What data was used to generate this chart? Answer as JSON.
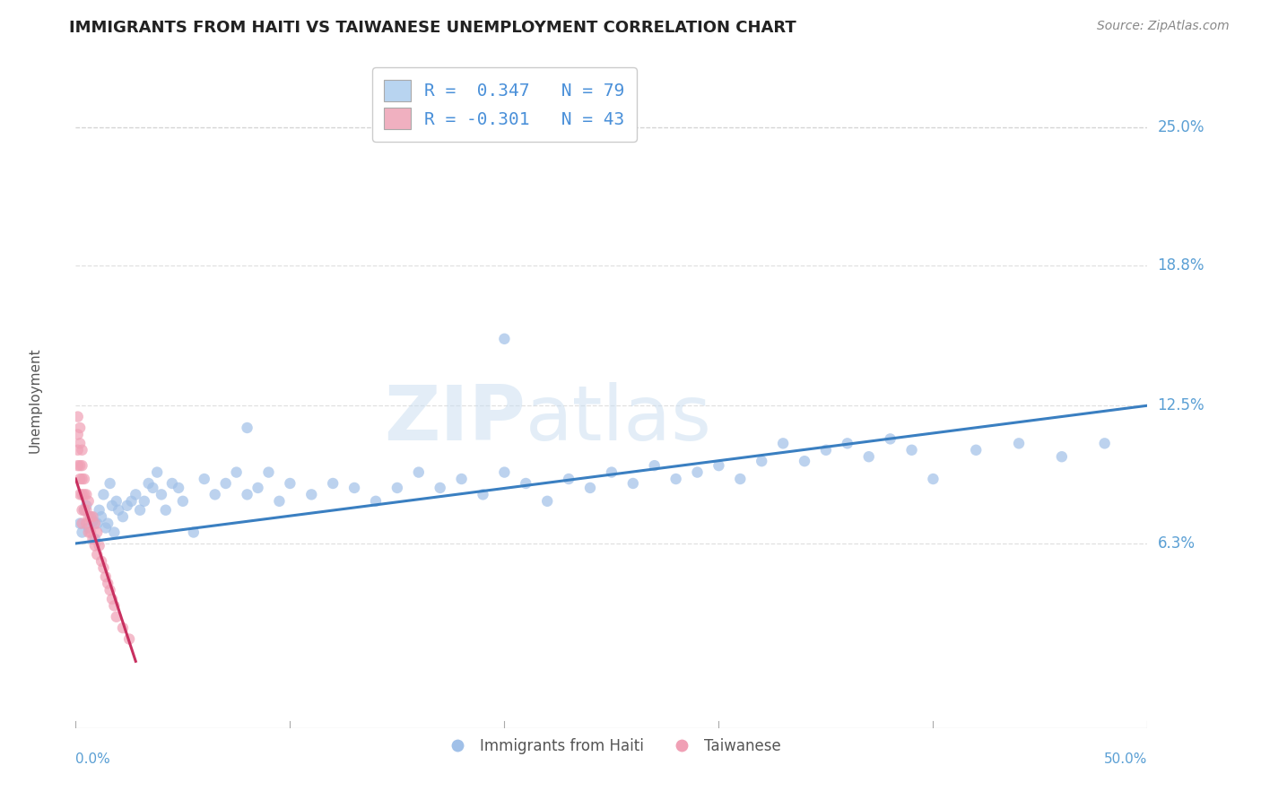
{
  "title": "IMMIGRANTS FROM HAITI VS TAIWANESE UNEMPLOYMENT CORRELATION CHART",
  "source": "Source: ZipAtlas.com",
  "ylabel": "Unemployment",
  "x_label_bottom_left": "0.0%",
  "x_label_bottom_right": "50.0%",
  "y_tick_labels": [
    "6.3%",
    "12.5%",
    "18.8%",
    "25.0%"
  ],
  "y_tick_values": [
    0.063,
    0.125,
    0.188,
    0.25
  ],
  "xlim": [
    0.0,
    0.5
  ],
  "ylim": [
    -0.02,
    0.275
  ],
  "legend_entries": [
    {
      "label": "R =  0.347   N = 79",
      "color": "#b8d4f0"
    },
    {
      "label": "R = -0.301   N = 43",
      "color": "#f0b0c0"
    }
  ],
  "legend_label_blue": "Immigrants from Haiti",
  "legend_label_pink": "Taiwanese",
  "watermark_zip": "ZIP",
  "watermark_atlas": "atlas",
  "blue_scatter": {
    "x": [
      0.002,
      0.003,
      0.004,
      0.005,
      0.006,
      0.007,
      0.008,
      0.009,
      0.01,
      0.011,
      0.012,
      0.013,
      0.014,
      0.015,
      0.016,
      0.017,
      0.018,
      0.019,
      0.02,
      0.022,
      0.024,
      0.026,
      0.028,
      0.03,
      0.032,
      0.034,
      0.036,
      0.038,
      0.04,
      0.042,
      0.045,
      0.048,
      0.05,
      0.055,
      0.06,
      0.065,
      0.07,
      0.075,
      0.08,
      0.085,
      0.09,
      0.095,
      0.1,
      0.11,
      0.12,
      0.13,
      0.14,
      0.15,
      0.16,
      0.17,
      0.18,
      0.19,
      0.2,
      0.21,
      0.22,
      0.23,
      0.24,
      0.25,
      0.26,
      0.27,
      0.28,
      0.29,
      0.3,
      0.31,
      0.32,
      0.33,
      0.34,
      0.35,
      0.36,
      0.37,
      0.38,
      0.39,
      0.4,
      0.42,
      0.44,
      0.46,
      0.48,
      0.2,
      0.08
    ],
    "y": [
      0.072,
      0.068,
      0.078,
      0.08,
      0.07,
      0.075,
      0.073,
      0.065,
      0.072,
      0.078,
      0.075,
      0.085,
      0.07,
      0.072,
      0.09,
      0.08,
      0.068,
      0.082,
      0.078,
      0.075,
      0.08,
      0.082,
      0.085,
      0.078,
      0.082,
      0.09,
      0.088,
      0.095,
      0.085,
      0.078,
      0.09,
      0.088,
      0.082,
      0.068,
      0.092,
      0.085,
      0.09,
      0.095,
      0.085,
      0.088,
      0.095,
      0.082,
      0.09,
      0.085,
      0.09,
      0.088,
      0.082,
      0.088,
      0.095,
      0.088,
      0.092,
      0.085,
      0.095,
      0.09,
      0.082,
      0.092,
      0.088,
      0.095,
      0.09,
      0.098,
      0.092,
      0.095,
      0.098,
      0.092,
      0.1,
      0.108,
      0.1,
      0.105,
      0.108,
      0.102,
      0.11,
      0.105,
      0.092,
      0.105,
      0.108,
      0.102,
      0.108,
      0.155,
      0.115
    ],
    "color": "#a0c0e8",
    "size": 80,
    "alpha": 0.7
  },
  "pink_scatter": {
    "x": [
      0.001,
      0.001,
      0.001,
      0.001,
      0.002,
      0.002,
      0.002,
      0.002,
      0.002,
      0.003,
      0.003,
      0.003,
      0.003,
      0.003,
      0.003,
      0.004,
      0.004,
      0.004,
      0.005,
      0.005,
      0.005,
      0.006,
      0.006,
      0.006,
      0.007,
      0.007,
      0.008,
      0.008,
      0.009,
      0.009,
      0.01,
      0.01,
      0.011,
      0.012,
      0.013,
      0.014,
      0.015,
      0.016,
      0.017,
      0.018,
      0.019,
      0.022,
      0.025
    ],
    "y": [
      0.12,
      0.112,
      0.105,
      0.098,
      0.115,
      0.108,
      0.098,
      0.092,
      0.085,
      0.105,
      0.098,
      0.092,
      0.085,
      0.078,
      0.072,
      0.092,
      0.085,
      0.078,
      0.085,
      0.078,
      0.072,
      0.082,
      0.075,
      0.068,
      0.075,
      0.068,
      0.075,
      0.065,
      0.072,
      0.062,
      0.068,
      0.058,
      0.062,
      0.055,
      0.052,
      0.048,
      0.045,
      0.042,
      0.038,
      0.035,
      0.03,
      0.025,
      0.02
    ],
    "color": "#f0a0b5",
    "size": 80,
    "alpha": 0.7
  },
  "blue_trendline": {
    "x_start": 0.0,
    "y_start": 0.063,
    "x_end": 0.5,
    "y_end": 0.125,
    "color": "#3a7fc1",
    "linewidth": 2.2
  },
  "pink_trendline": {
    "x_start": 0.0,
    "y_start": 0.092,
    "x_end": 0.028,
    "y_end": 0.01,
    "color": "#c83060",
    "linewidth": 2.2
  },
  "grid_color": "#cccccc",
  "grid_style": "--",
  "grid_alpha": 0.6,
  "background_color": "#ffffff",
  "title_color": "#222222",
  "title_fontsize": 13,
  "axis_label_color": "#5a9fd4",
  "source_color": "#888888",
  "source_fontsize": 10
}
